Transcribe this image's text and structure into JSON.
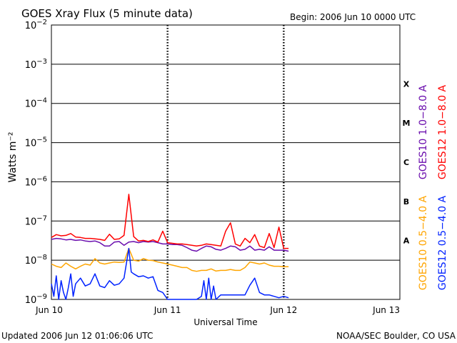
{
  "title": "GOES Xray Flux (5 minute data)",
  "begin_label": "Begin:  2006 Jun 10 0000 UTC",
  "footer_left": "Updated 2006 Jun 12 01:06:06 UTC",
  "footer_right": "NOAA/SEC Boulder, CO USA",
  "chart_data": {
    "type": "line",
    "title": "GOES Xray Flux (5 minute data)",
    "xlabel": "Universal Time",
    "ylabel": "Watts m⁻²",
    "y_scale": "log",
    "ylim": [
      1e-09,
      0.01
    ],
    "xlim": [
      "2006-06-10 00:00",
      "2006-06-13 00:00"
    ],
    "x_ticks": [
      {
        "x": "2006-06-10 00:00",
        "label": "Jun 10"
      },
      {
        "x": "2006-06-11 00:00",
        "label": "Jun 11"
      },
      {
        "x": "2006-06-12 00:00",
        "label": "Jun 12"
      },
      {
        "x": "2006-06-13 00:00",
        "label": "Jun 13"
      }
    ],
    "y_ticks": [
      {
        "value": 1e-09,
        "base": "10",
        "exp": "−9"
      },
      {
        "value": 1e-08,
        "base": "10",
        "exp": "−8"
      },
      {
        "value": 1e-07,
        "base": "10",
        "exp": "−7"
      },
      {
        "value": 1e-06,
        "base": "10",
        "exp": "−6"
      },
      {
        "value": 1e-05,
        "base": "10",
        "exp": "−5"
      },
      {
        "value": 0.0001,
        "base": "10",
        "exp": "−4"
      },
      {
        "value": 0.001,
        "base": "10",
        "exp": "−3"
      },
      {
        "value": 0.01,
        "base": "10",
        "exp": "−2"
      }
    ],
    "flare_classes": [
      {
        "label": "X",
        "value": 0.000316
      },
      {
        "label": "M",
        "value": 3.16e-05
      },
      {
        "label": "C",
        "value": 3.16e-06
      },
      {
        "label": "B",
        "value": 3.16e-07
      },
      {
        "label": "A",
        "value": 3.16e-08
      }
    ],
    "grid": "horizontal at each decade; dotted vertical at day boundaries",
    "legend_placement": "right, rotated",
    "series": [
      {
        "name": "GOES10 1.0−8.0 A",
        "color": "#6a0dad",
        "points": [
          [
            "2006-06-10 00:00",
            3.4e-08
          ],
          [
            "2006-06-10 01:00",
            3.6e-08
          ],
          [
            "2006-06-10 02:00",
            3.5e-08
          ],
          [
            "2006-06-10 03:00",
            3.3e-08
          ],
          [
            "2006-06-10 04:00",
            3.4e-08
          ],
          [
            "2006-06-10 05:00",
            3.2e-08
          ],
          [
            "2006-06-10 06:00",
            3.3e-08
          ],
          [
            "2006-06-10 07:00",
            3.1e-08
          ],
          [
            "2006-06-10 08:00",
            3e-08
          ],
          [
            "2006-06-10 09:00",
            3.1e-08
          ],
          [
            "2006-06-10 10:00",
            2.8e-08
          ],
          [
            "2006-06-10 11:00",
            2.3e-08
          ],
          [
            "2006-06-10 12:00",
            2.3e-08
          ],
          [
            "2006-06-10 13:00",
            2.9e-08
          ],
          [
            "2006-06-10 14:00",
            3e-08
          ],
          [
            "2006-06-10 15:00",
            2.4e-08
          ],
          [
            "2006-06-10 16:00",
            2.9e-08
          ],
          [
            "2006-06-10 17:00",
            3e-08
          ],
          [
            "2006-06-10 18:00",
            2.8e-08
          ],
          [
            "2006-06-10 19:00",
            3e-08
          ],
          [
            "2006-06-10 20:00",
            2.9e-08
          ],
          [
            "2006-06-10 21:00",
            3e-08
          ],
          [
            "2006-06-10 22:00",
            2.8e-08
          ],
          [
            "2006-06-10 23:00",
            2.6e-08
          ],
          [
            "2006-06-11 00:00",
            2.6e-08
          ],
          [
            "2006-06-11 01:00",
            2.5e-08
          ],
          [
            "2006-06-11 02:00",
            2.5e-08
          ],
          [
            "2006-06-11 03:00",
            2.4e-08
          ],
          [
            "2006-06-11 04:00",
            2.1e-08
          ],
          [
            "2006-06-11 05:00",
            1.8e-08
          ],
          [
            "2006-06-11 06:00",
            1.7e-08
          ],
          [
            "2006-06-11 07:00",
            2e-08
          ],
          [
            "2006-06-11 08:00",
            2.3e-08
          ],
          [
            "2006-06-11 09:00",
            2.2e-08
          ],
          [
            "2006-06-11 10:00",
            1.9e-08
          ],
          [
            "2006-06-11 11:00",
            1.8e-08
          ],
          [
            "2006-06-11 12:00",
            2e-08
          ],
          [
            "2006-06-11 13:00",
            2.3e-08
          ],
          [
            "2006-06-11 14:00",
            2.2e-08
          ],
          [
            "2006-06-11 15:00",
            1.8e-08
          ],
          [
            "2006-06-11 16:00",
            1.9e-08
          ],
          [
            "2006-06-11 17:00",
            2.3e-08
          ],
          [
            "2006-06-11 18:00",
            1.8e-08
          ],
          [
            "2006-06-11 19:00",
            1.9e-08
          ],
          [
            "2006-06-11 20:00",
            1.8e-08
          ],
          [
            "2006-06-11 21:00",
            2.2e-08
          ],
          [
            "2006-06-11 22:00",
            1.8e-08
          ],
          [
            "2006-06-11 23:00",
            1.8e-08
          ],
          [
            "2006-06-12 00:00",
            1.8e-08
          ],
          [
            "2006-06-12 01:00",
            1.7e-08
          ]
        ]
      },
      {
        "name": "GOES12 1.0−8.0 A",
        "color": "#ff0000",
        "points": [
          [
            "2006-06-10 00:00",
            3.8e-08
          ],
          [
            "2006-06-10 01:00",
            4.5e-08
          ],
          [
            "2006-06-10 02:00",
            4.2e-08
          ],
          [
            "2006-06-10 03:00",
            4.3e-08
          ],
          [
            "2006-06-10 04:00",
            4.8e-08
          ],
          [
            "2006-06-10 05:00",
            3.9e-08
          ],
          [
            "2006-06-10 06:00",
            3.8e-08
          ],
          [
            "2006-06-10 07:00",
            3.6e-08
          ],
          [
            "2006-06-10 08:00",
            3.6e-08
          ],
          [
            "2006-06-10 09:00",
            3.5e-08
          ],
          [
            "2006-06-10 10:00",
            3.4e-08
          ],
          [
            "2006-06-10 11:00",
            3.2e-08
          ],
          [
            "2006-06-10 12:00",
            4.6e-08
          ],
          [
            "2006-06-10 13:00",
            3.4e-08
          ],
          [
            "2006-06-10 14:00",
            3.5e-08
          ],
          [
            "2006-06-10 15:00",
            4.3e-08
          ],
          [
            "2006-06-10 16:00",
            4.8e-07
          ],
          [
            "2006-06-10 17:00",
            4e-08
          ],
          [
            "2006-06-10 18:00",
            3.1e-08
          ],
          [
            "2006-06-10 19:00",
            3.2e-08
          ],
          [
            "2006-06-10 20:00",
            3e-08
          ],
          [
            "2006-06-10 21:00",
            3.3e-08
          ],
          [
            "2006-06-10 22:00",
            2.9e-08
          ],
          [
            "2006-06-10 23:00",
            5.5e-08
          ],
          [
            "2006-06-11 00:00",
            2.8e-08
          ],
          [
            "2006-06-11 01:00",
            2.7e-08
          ],
          [
            "2006-06-11 02:00",
            2.6e-08
          ],
          [
            "2006-06-11 03:00",
            2.6e-08
          ],
          [
            "2006-06-11 04:00",
            2.5e-08
          ],
          [
            "2006-06-11 05:00",
            2.4e-08
          ],
          [
            "2006-06-11 06:00",
            2.3e-08
          ],
          [
            "2006-06-11 07:00",
            2.4e-08
          ],
          [
            "2006-06-11 08:00",
            2.6e-08
          ],
          [
            "2006-06-11 09:00",
            2.5e-08
          ],
          [
            "2006-06-11 10:00",
            2.4e-08
          ],
          [
            "2006-06-11 11:00",
            2.3e-08
          ],
          [
            "2006-06-11 12:00",
            5.5e-08
          ],
          [
            "2006-06-11 13:00",
            9e-08
          ],
          [
            "2006-06-11 14:00",
            2.6e-08
          ],
          [
            "2006-06-11 15:00",
            2.3e-08
          ],
          [
            "2006-06-11 16:00",
            3.6e-08
          ],
          [
            "2006-06-11 17:00",
            2.8e-08
          ],
          [
            "2006-06-11 18:00",
            4.5e-08
          ],
          [
            "2006-06-11 19:00",
            2.3e-08
          ],
          [
            "2006-06-11 20:00",
            2.1e-08
          ],
          [
            "2006-06-11 21:00",
            4.8e-08
          ],
          [
            "2006-06-11 22:00",
            2.1e-08
          ],
          [
            "2006-06-11 23:00",
            7e-08
          ],
          [
            "2006-06-12 00:00",
            2e-08
          ],
          [
            "2006-06-12 01:00",
            2e-08
          ]
        ]
      },
      {
        "name": "GOES10 0.5−4.0 A",
        "color": "#ffa500",
        "points": [
          [
            "2006-06-10 00:00",
            8e-09
          ],
          [
            "2006-06-10 01:00",
            7e-09
          ],
          [
            "2006-06-10 02:00",
            6.5e-09
          ],
          [
            "2006-06-10 03:00",
            8.5e-09
          ],
          [
            "2006-06-10 04:00",
            7e-09
          ],
          [
            "2006-06-10 05:00",
            6e-09
          ],
          [
            "2006-06-10 06:00",
            7e-09
          ],
          [
            "2006-06-10 07:00",
            8e-09
          ],
          [
            "2006-06-10 08:00",
            7.5e-09
          ],
          [
            "2006-06-10 09:00",
            1.1e-08
          ],
          [
            "2006-06-10 10:00",
            8.5e-09
          ],
          [
            "2006-06-10 11:00",
            8e-09
          ],
          [
            "2006-06-10 12:00",
            8.5e-09
          ],
          [
            "2006-06-10 13:00",
            9e-09
          ],
          [
            "2006-06-10 14:00",
            8.8e-09
          ],
          [
            "2006-06-10 15:00",
            9e-09
          ],
          [
            "2006-06-10 16:00",
            2e-08
          ],
          [
            "2006-06-10 17:00",
            1e-08
          ],
          [
            "2006-06-10 18:00",
            9.5e-09
          ],
          [
            "2006-06-10 19:00",
            1.1e-08
          ],
          [
            "2006-06-10 20:00",
            1e-08
          ],
          [
            "2006-06-10 21:00",
            9.8e-09
          ],
          [
            "2006-06-10 22:00",
            9e-09
          ],
          [
            "2006-06-10 23:00",
            8.5e-09
          ],
          [
            "2006-06-11 00:00",
            8e-09
          ],
          [
            "2006-06-11 01:00",
            7.5e-09
          ],
          [
            "2006-06-11 02:00",
            7e-09
          ],
          [
            "2006-06-11 03:00",
            6.5e-09
          ],
          [
            "2006-06-11 04:00",
            6.5e-09
          ],
          [
            "2006-06-11 05:00",
            5.5e-09
          ],
          [
            "2006-06-11 06:00",
            5.2e-09
          ],
          [
            "2006-06-11 07:00",
            5.5e-09
          ],
          [
            "2006-06-11 08:00",
            5.5e-09
          ],
          [
            "2006-06-11 09:00",
            6e-09
          ],
          [
            "2006-06-11 10:00",
            5.3e-09
          ],
          [
            "2006-06-11 11:00",
            5.5e-09
          ],
          [
            "2006-06-11 12:00",
            5.5e-09
          ],
          [
            "2006-06-11 13:00",
            5.8e-09
          ],
          [
            "2006-06-11 14:00",
            5.5e-09
          ],
          [
            "2006-06-11 15:00",
            5.5e-09
          ],
          [
            "2006-06-11 16:00",
            6.5e-09
          ],
          [
            "2006-06-11 17:00",
            9e-09
          ],
          [
            "2006-06-11 18:00",
            8.5e-09
          ],
          [
            "2006-06-11 19:00",
            8e-09
          ],
          [
            "2006-06-11 20:00",
            8.5e-09
          ],
          [
            "2006-06-11 21:00",
            7.5e-09
          ],
          [
            "2006-06-11 22:00",
            7e-09
          ],
          [
            "2006-06-11 23:00",
            7e-09
          ],
          [
            "2006-06-12 00:00",
            6.8e-09
          ],
          [
            "2006-06-12 01:00",
            6.8e-09
          ]
        ]
      },
      {
        "name": "GOES12 0.5−4.0 A",
        "color": "#0022ff",
        "points": [
          [
            "2006-06-10 00:00",
            2.5e-09
          ],
          [
            "2006-06-10 00:30",
            1.2e-09
          ],
          [
            "2006-06-10 01:00",
            4e-09
          ],
          [
            "2006-06-10 01:30",
            1e-09
          ],
          [
            "2006-06-10 02:00",
            3e-09
          ],
          [
            "2006-06-10 02:30",
            1.5e-09
          ],
          [
            "2006-06-10 03:00",
            1e-09
          ],
          [
            "2006-06-10 03:30",
            2e-09
          ],
          [
            "2006-06-10 04:00",
            4.5e-09
          ],
          [
            "2006-06-10 04:30",
            1.2e-09
          ],
          [
            "2006-06-10 05:00",
            2.5e-09
          ],
          [
            "2006-06-10 06:00",
            3.5e-09
          ],
          [
            "2006-06-10 07:00",
            2.2e-09
          ],
          [
            "2006-06-10 08:00",
            2.5e-09
          ],
          [
            "2006-06-10 09:00",
            4.5e-09
          ],
          [
            "2006-06-10 10:00",
            2.2e-09
          ],
          [
            "2006-06-10 11:00",
            2e-09
          ],
          [
            "2006-06-10 12:00",
            3e-09
          ],
          [
            "2006-06-10 13:00",
            2.3e-09
          ],
          [
            "2006-06-10 14:00",
            2.5e-09
          ],
          [
            "2006-06-10 15:00",
            3.5e-09
          ],
          [
            "2006-06-10 16:00",
            2e-08
          ],
          [
            "2006-06-10 16:30",
            5e-09
          ],
          [
            "2006-06-10 17:00",
            4.5e-09
          ],
          [
            "2006-06-10 18:00",
            3.8e-09
          ],
          [
            "2006-06-10 19:00",
            4e-09
          ],
          [
            "2006-06-10 20:00",
            3.5e-09
          ],
          [
            "2006-06-10 21:00",
            3.8e-09
          ],
          [
            "2006-06-10 22:00",
            1.7e-09
          ],
          [
            "2006-06-10 23:00",
            1.5e-09
          ],
          [
            "2006-06-11 00:00",
            1e-09
          ],
          [
            "2006-06-11 01:00",
            1e-09
          ],
          [
            "2006-06-11 02:00",
            1e-09
          ],
          [
            "2006-06-11 03:00",
            1e-09
          ],
          [
            "2006-06-11 04:00",
            1e-09
          ],
          [
            "2006-06-11 05:00",
            1e-09
          ],
          [
            "2006-06-11 06:00",
            1e-09
          ],
          [
            "2006-06-11 07:00",
            1.2e-09
          ],
          [
            "2006-06-11 07:30",
            3e-09
          ],
          [
            "2006-06-11 08:00",
            1e-09
          ],
          [
            "2006-06-11 08:30",
            3.5e-09
          ],
          [
            "2006-06-11 09:00",
            1e-09
          ],
          [
            "2006-06-11 09:30",
            2.2e-09
          ],
          [
            "2006-06-11 10:00",
            1e-09
          ],
          [
            "2006-06-11 11:00",
            1.3e-09
          ],
          [
            "2006-06-11 12:00",
            1.3e-09
          ],
          [
            "2006-06-11 13:00",
            1.3e-09
          ],
          [
            "2006-06-11 14:00",
            1.3e-09
          ],
          [
            "2006-06-11 15:00",
            1.3e-09
          ],
          [
            "2006-06-11 16:00",
            1.3e-09
          ],
          [
            "2006-06-11 17:00",
            2.3e-09
          ],
          [
            "2006-06-11 18:00",
            3.5e-09
          ],
          [
            "2006-06-11 19:00",
            1.5e-09
          ],
          [
            "2006-06-11 20:00",
            1.3e-09
          ],
          [
            "2006-06-11 21:00",
            1.3e-09
          ],
          [
            "2006-06-11 22:00",
            1.2e-09
          ],
          [
            "2006-06-11 23:00",
            1.1e-09
          ],
          [
            "2006-06-12 00:00",
            1.2e-09
          ],
          [
            "2006-06-12 01:00",
            1.1e-09
          ]
        ]
      }
    ]
  }
}
